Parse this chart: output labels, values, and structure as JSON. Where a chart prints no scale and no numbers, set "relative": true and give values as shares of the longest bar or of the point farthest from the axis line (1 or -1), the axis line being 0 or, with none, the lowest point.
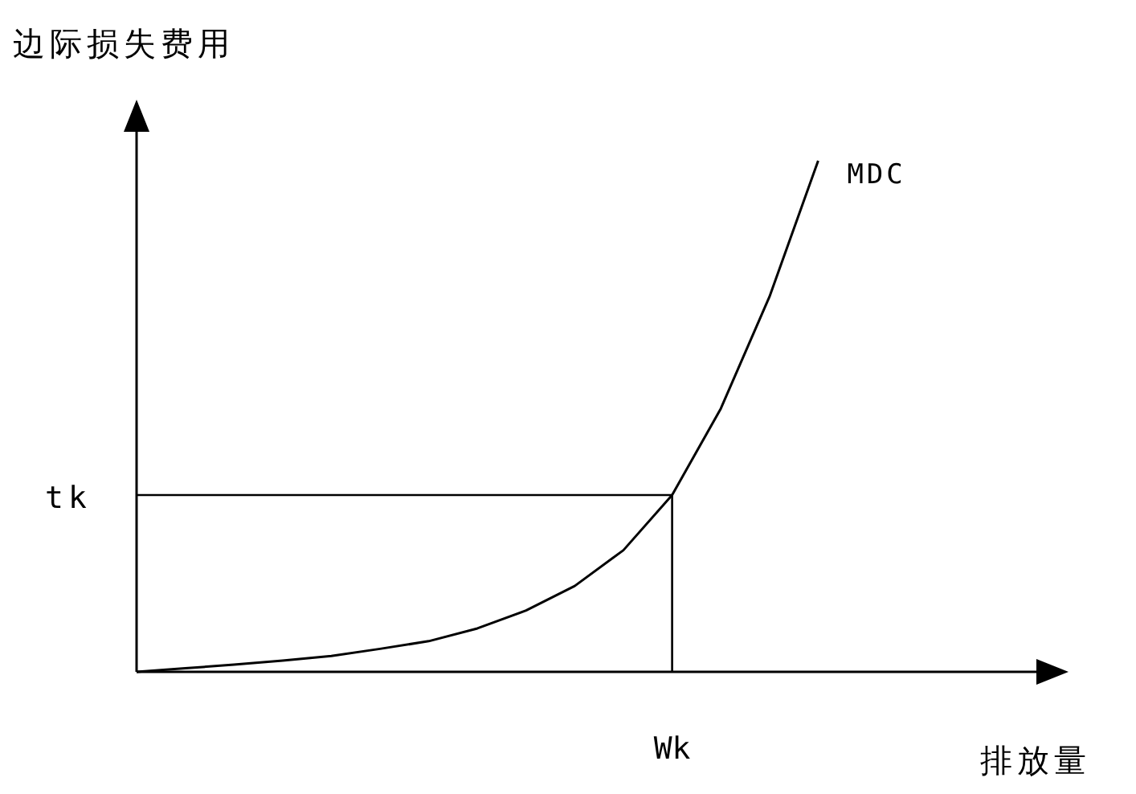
{
  "chart_data": {
    "type": "line",
    "relative": true,
    "xlabel": "排放量",
    "ylabel": "边际损失费用",
    "categories": [
      null,
      null,
      null,
      null,
      null,
      null,
      null,
      null,
      null,
      null,
      null,
      null,
      null,
      null,
      null
    ],
    "series": [
      {
        "name": "MDC",
        "color": "#000000",
        "values": [
          0,
          0.007,
          0.014,
          0.022,
          0.031,
          0.045,
          0.06,
          0.085,
          0.12,
          0.168,
          0.238,
          0.346,
          0.515,
          0.734,
          1
        ]
      }
    ],
    "ref_lines": [
      {
        "axis": "y",
        "value": 0.346,
        "label": "tk",
        "color": "#000000"
      }
    ],
    "annotations": [
      "Wk"
    ],
    "line_style": "solid"
  }
}
